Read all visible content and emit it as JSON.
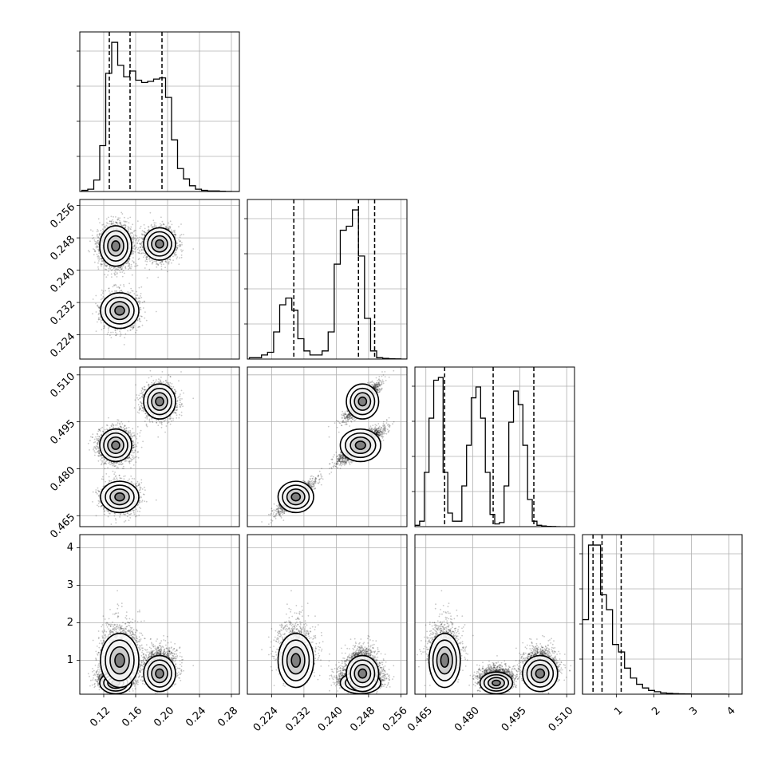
{
  "chart_data": {
    "type": "corner",
    "parameters": 4,
    "grid": true,
    "axes": [
      {
        "range": [
          0.09,
          0.29
        ],
        "ticks": [
          0.12,
          0.16,
          0.2,
          0.24,
          0.28
        ],
        "tick_labels": [
          "0.12",
          "0.16",
          "0.20",
          "0.24",
          "0.28"
        ]
      },
      {
        "range": [
          0.218,
          0.2575
        ],
        "ticks": [
          0.224,
          0.232,
          0.24,
          0.248,
          0.256
        ],
        "tick_labels": [
          "0.224",
          "0.232",
          "0.240",
          "0.248",
          "0.256"
        ]
      },
      {
        "range": [
          0.4615,
          0.5125
        ],
        "ticks": [
          0.465,
          0.48,
          0.495,
          0.51
        ],
        "tick_labels": [
          "0.465",
          "0.480",
          "0.495",
          "0.510"
        ]
      },
      {
        "range": [
          0.1,
          4.35
        ],
        "ticks": [
          1,
          2,
          3,
          4
        ],
        "tick_labels": [
          "1",
          "2",
          "3",
          "4"
        ]
      }
    ],
    "quantiles": [
      [
        0.127,
        0.153,
        0.193
      ],
      [
        0.2295,
        0.2455,
        0.2495
      ],
      [
        0.471,
        0.4865,
        0.4995
      ],
      [
        0.38,
        0.62,
        1.13
      ]
    ],
    "histograms": [
      {
        "bin_edges_start": 0.0925,
        "bin_width": 0.0075,
        "counts": [
          1,
          2,
          10,
          40,
          103,
          130,
          110,
          100,
          105,
          97,
          95,
          96,
          98,
          99,
          82,
          45,
          20,
          11,
          5,
          2,
          1,
          0.5,
          0.5,
          0.2,
          0.1,
          0,
          0
        ]
      },
      {
        "bin_edges_start": 0.2185,
        "bin_width": 0.0015,
        "counts": [
          1,
          1,
          3,
          5,
          20,
          40,
          45,
          36,
          15,
          6,
          3,
          3,
          6,
          20,
          70,
          95,
          98,
          110,
          76,
          30,
          6,
          1,
          0.5,
          0.2,
          0.1,
          0
        ]
      },
      {
        "bin_edges_start": 0.4615,
        "bin_width": 0.0015,
        "counts": [
          1,
          4,
          40,
          80,
          108,
          110,
          40,
          10,
          4,
          4,
          30,
          60,
          95,
          103,
          80,
          40,
          9,
          2,
          3,
          30,
          77,
          100,
          90,
          60,
          20,
          4,
          1,
          0.5,
          0.2,
          0.1,
          0
        ]
      },
      {
        "bin_edges_start": 0.1,
        "bin_width": 0.16,
        "counts": [
          60,
          120,
          120,
          80,
          68,
          40,
          34,
          21,
          13,
          8,
          5,
          3,
          2,
          1,
          0.7,
          0.5,
          0.3,
          0.2,
          0.1,
          0.1,
          0.05,
          0.05,
          0.05,
          0.05,
          0.02,
          0.02,
          0.01
        ]
      }
    ],
    "clusters": [
      {
        "mean": [
          0.135,
          0.246,
          0.4875,
          0.4
        ],
        "sd": [
          0.01,
          0.0025,
          0.0026,
          0.18
        ]
      },
      {
        "mean": [
          0.19,
          0.2465,
          0.5015,
          0.65
        ],
        "sd": [
          0.01,
          0.002,
          0.0028,
          0.3
        ]
      },
      {
        "mean": [
          0.14,
          0.23,
          0.471,
          1.0
        ],
        "sd": [
          0.012,
          0.0022,
          0.0025,
          0.45
        ]
      }
    ]
  }
}
